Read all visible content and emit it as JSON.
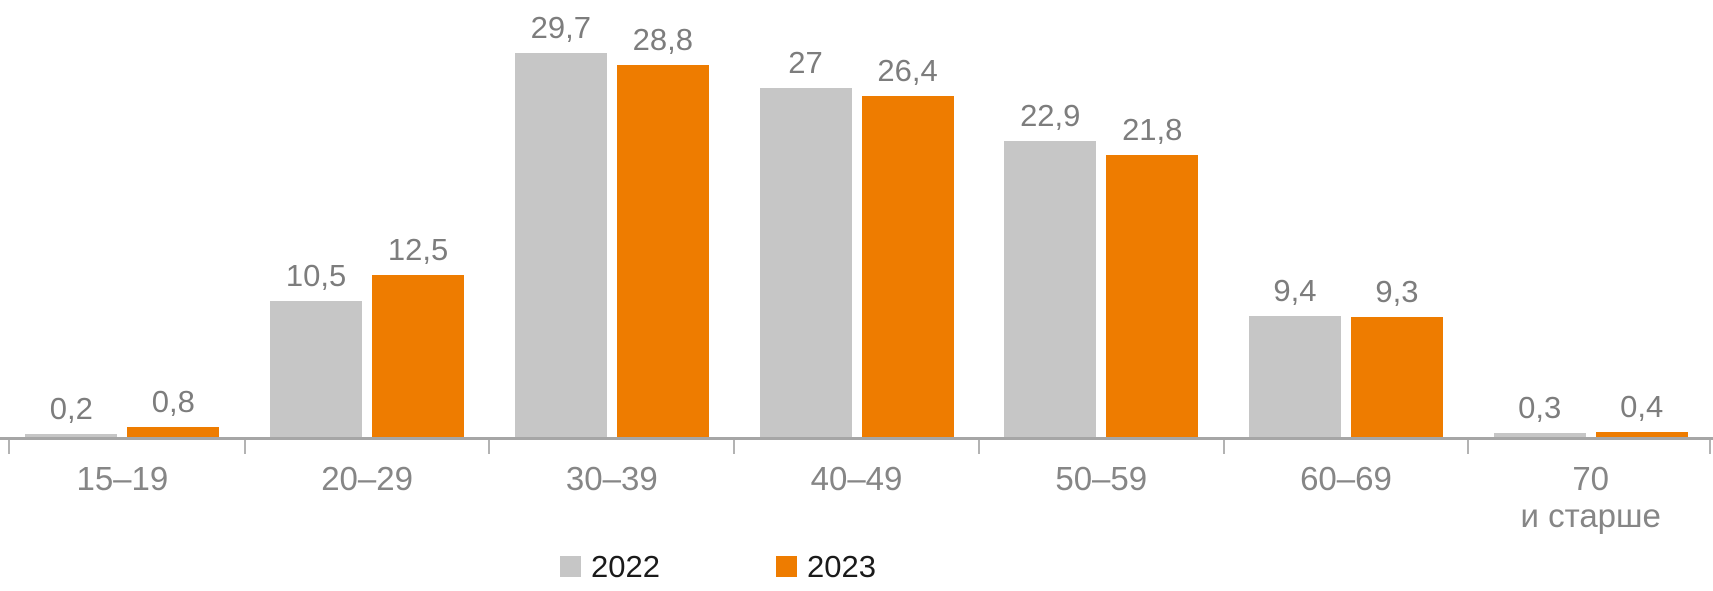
{
  "chart_data": {
    "type": "bar",
    "title": "",
    "xlabel": "",
    "ylabel": "",
    "ylim": [
      0,
      30
    ],
    "grid": false,
    "axis_shown": "x-only",
    "value_labels_shown": true,
    "decimal_separator": ",",
    "legend_position": "bottom",
    "categories": [
      "15–19",
      "20–29",
      "30–39",
      "40–49",
      "50–59",
      "60–69",
      "70 и старше"
    ],
    "category_display": [
      [
        "15–19"
      ],
      [
        "20–29"
      ],
      [
        "30–39"
      ],
      [
        "40–49"
      ],
      [
        "50–59"
      ],
      [
        "60–69"
      ],
      [
        "70",
        "и старше"
      ]
    ],
    "series": [
      {
        "name": "2022",
        "color": "#c6c6c6",
        "values": [
          0.2,
          10.5,
          29.7,
          27,
          22.9,
          9.4,
          0.3
        ],
        "labels": [
          "0,2",
          "10,5",
          "29,7",
          "27",
          "22,9",
          "9,4",
          "0,3"
        ]
      },
      {
        "name": "2023",
        "color": "#ee7c00",
        "values": [
          0.8,
          12.5,
          28.8,
          26.4,
          21.8,
          9.3,
          0.4
        ],
        "labels": [
          "0,8",
          "12,5",
          "28,8",
          "26,4",
          "21,8",
          "9,3",
          "0,4"
        ]
      }
    ]
  },
  "legend": {
    "items": [
      {
        "label": "2022",
        "color": "#c6c6c6"
      },
      {
        "label": "2023",
        "color": "#ee7c00"
      }
    ]
  },
  "colors": {
    "bar_2022": "#c6c6c6",
    "bar_2023": "#ee7c00",
    "value_label_text": "#7d7d7d",
    "category_label_text": "#868686",
    "legend_text": "#1a1a1a",
    "axis_line": "#a6a6a6",
    "tick": "#b3b3b3",
    "background": "#ffffff"
  }
}
